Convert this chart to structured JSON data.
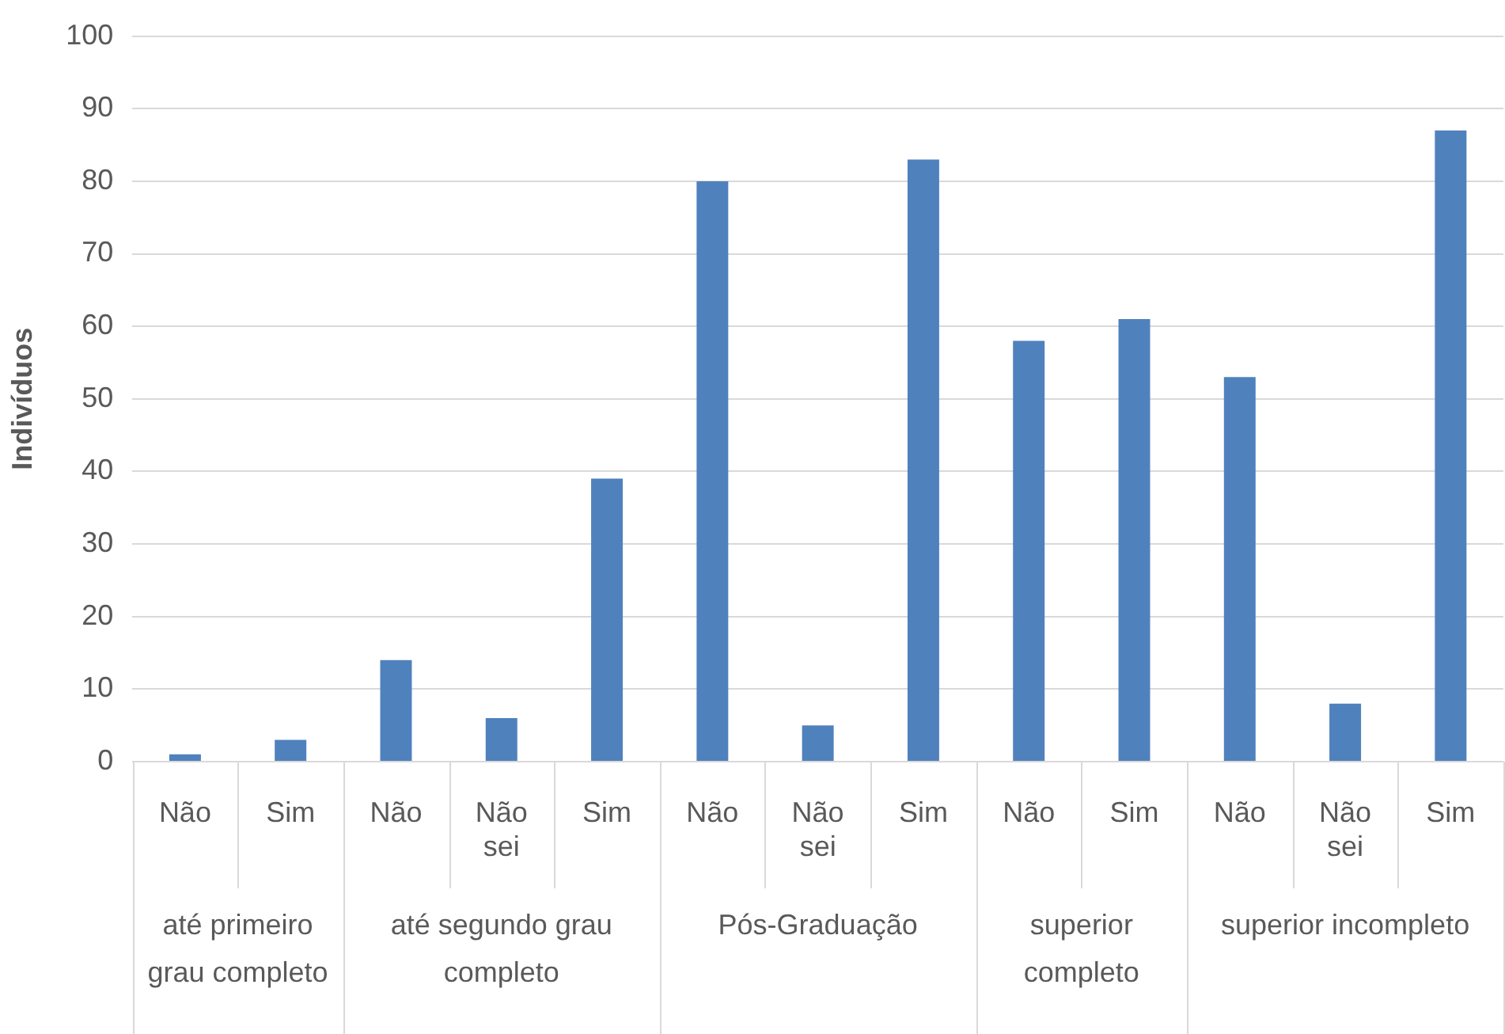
{
  "chart_data": {
    "type": "bar",
    "ylabel": "Indivíduos",
    "categories": [
      "Não",
      "Sim",
      "Não",
      "Não sei",
      "Sim",
      "Não",
      "Não sei",
      "Sim",
      "Não",
      "Sim",
      "Não",
      "Não sei",
      "Sim"
    ],
    "values": [
      1,
      3,
      14,
      6,
      39,
      80,
      5,
      83,
      58,
      61,
      53,
      8,
      87
    ],
    "color": "#4f81bd",
    "annotations": [
      "até primeiro grau completo",
      "até segundo grau completo",
      "Pós-Graduação",
      "superior completo",
      "superior incompleto"
    ],
    "ylim": [
      0,
      100
    ],
    "yticks": [
      0,
      10,
      20,
      30,
      40,
      50,
      60,
      70,
      80,
      90,
      100
    ],
    "grid": true,
    "legend": false
  }
}
